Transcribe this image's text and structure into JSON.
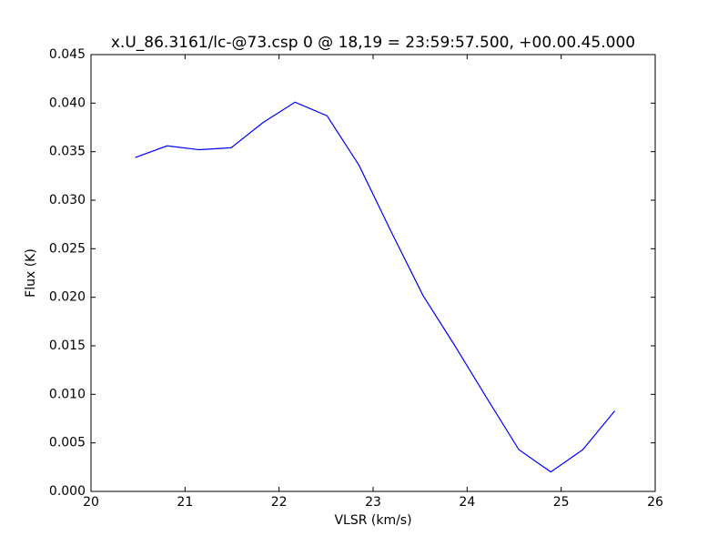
{
  "chart_data": {
    "type": "line",
    "title": "x.U_86.3161/lc-@73.csp 0 @ 18,19 = 23:59:57.500, +00.00.45.000",
    "x_label": "VLSR (km/s)",
    "y_label": "Flux (K)",
    "x": [
      20.47,
      20.81,
      21.15,
      21.49,
      21.83,
      22.17,
      22.51,
      22.85,
      23.19,
      23.53,
      23.87,
      24.21,
      24.55,
      24.89,
      25.23,
      25.57
    ],
    "series": [
      {
        "color": "#0000ff",
        "values": [
          0.0344,
          0.0356,
          0.0352,
          0.0354,
          0.038,
          0.0401,
          0.0387,
          0.0336,
          0.0268,
          0.0202,
          0.015,
          0.0096,
          0.0043,
          0.002,
          0.0043,
          0.0083
        ]
      }
    ],
    "xlim": [
      20,
      26
    ],
    "ylim": [
      0,
      0.045
    ],
    "xticks": [
      20,
      21,
      22,
      23,
      24,
      25,
      26
    ],
    "yticks": [
      {
        "value": 0,
        "label": "0.000"
      },
      {
        "value": 0.005,
        "label": "0.005"
      },
      {
        "value": 0.01,
        "label": "0.010"
      },
      {
        "value": 0.015,
        "label": "0.015"
      },
      {
        "value": 0.02,
        "label": "0.020"
      },
      {
        "value": 0.025,
        "label": "0.025"
      },
      {
        "value": 0.03,
        "label": "0.030"
      },
      {
        "value": 0.035,
        "label": "0.035"
      },
      {
        "value": 0.04,
        "label": "0.040"
      },
      {
        "value": 0.045,
        "label": "0.045"
      }
    ],
    "grid": false
  }
}
